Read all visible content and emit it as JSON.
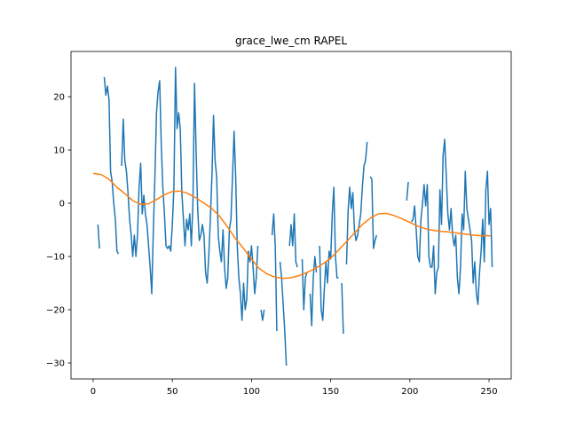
{
  "chart_data": {
    "type": "line",
    "title": "grace_lwe_cm RAPEL",
    "xlabel": "",
    "ylabel": "",
    "xlim": [
      -14,
      264
    ],
    "ylim": [
      -33,
      28.5
    ],
    "xticks": [
      0,
      50,
      100,
      150,
      200,
      250
    ],
    "yticks": [
      -30,
      -20,
      -10,
      0,
      10,
      20
    ],
    "grid": false,
    "legend": "none",
    "series": [
      {
        "color": "#1f77b4",
        "segments": [
          [
            [
              3,
              -4
            ],
            [
              4,
              -8.5
            ]
          ],
          [
            [
              7,
              23.7
            ],
            [
              8,
              20.3
            ],
            [
              9,
              22
            ],
            [
              10,
              19.5
            ],
            [
              11,
              6
            ],
            [
              12,
              4
            ],
            [
              13,
              0
            ],
            [
              14,
              -3
            ],
            [
              15,
              -9
            ],
            [
              16,
              -9.5
            ]
          ],
          [
            [
              18,
              7
            ],
            [
              19,
              15.8
            ],
            [
              20,
              8
            ],
            [
              21,
              6
            ],
            [
              22,
              2
            ],
            [
              23,
              -3
            ],
            [
              24,
              -6
            ],
            [
              25,
              -10
            ],
            [
              26,
              -6
            ],
            [
              27,
              -10
            ],
            [
              28,
              -6
            ],
            [
              29,
              3
            ],
            [
              30,
              7.5
            ],
            [
              31,
              -2
            ],
            [
              32,
              1.5
            ],
            [
              33,
              -2
            ],
            [
              34,
              -4
            ],
            [
              35,
              -8
            ],
            [
              36,
              -12
            ],
            [
              37,
              -17
            ],
            [
              38,
              -5
            ],
            [
              39,
              5
            ],
            [
              40,
              17
            ],
            [
              41,
              21
            ],
            [
              42,
              23
            ],
            [
              43,
              11
            ],
            [
              44,
              3
            ],
            [
              45,
              -2
            ],
            [
              46,
              -8
            ],
            [
              47,
              -8.5
            ],
            [
              48,
              -8
            ],
            [
              49,
              -9
            ],
            [
              50,
              -4
            ],
            [
              51,
              3
            ],
            [
              52,
              25.5
            ],
            [
              53,
              14
            ],
            [
              54,
              17
            ],
            [
              55,
              14
            ],
            [
              56,
              2
            ],
            [
              57,
              -3
            ],
            [
              58,
              -8
            ],
            [
              59,
              -3
            ],
            [
              60,
              -5
            ],
            [
              61,
              -2
            ],
            [
              62,
              -8
            ],
            [
              63,
              0
            ],
            [
              64,
              22.5
            ],
            [
              65,
              10
            ],
            [
              66,
              -1
            ],
            [
              67,
              -7
            ],
            [
              68,
              -6
            ],
            [
              69,
              -4
            ],
            [
              70,
              -6
            ],
            [
              71,
              -13
            ],
            [
              72,
              -15
            ],
            [
              73,
              -10
            ],
            [
              74,
              -3
            ],
            [
              75,
              5
            ],
            [
              76,
              16.5
            ],
            [
              77,
              8
            ],
            [
              78,
              5
            ],
            [
              79,
              -6
            ],
            [
              80,
              -9
            ],
            [
              81,
              -11
            ],
            [
              82,
              -5
            ],
            [
              83,
              -12
            ],
            [
              84,
              -16
            ],
            [
              85,
              -14
            ],
            [
              86,
              -5
            ],
            [
              87,
              -3
            ],
            [
              88,
              5
            ],
            [
              89,
              13.5
            ],
            [
              90,
              5
            ],
            [
              91,
              -8
            ],
            [
              92,
              -14
            ],
            [
              93,
              -17
            ],
            [
              94,
              -22
            ],
            [
              95,
              -15
            ],
            [
              96,
              -20
            ],
            [
              97,
              -18
            ],
            [
              98,
              -9
            ],
            [
              99,
              -11
            ],
            [
              100,
              -8
            ],
            [
              101,
              -12
            ],
            [
              102,
              -17
            ],
            [
              103,
              -14
            ],
            [
              104,
              -8
            ]
          ],
          [
            [
              106,
              -20
            ],
            [
              107,
              -22
            ],
            [
              108,
              -20
            ]
          ],
          [
            [
              113,
              -6
            ],
            [
              114,
              -2
            ],
            [
              115,
              -8
            ],
            [
              116,
              -24
            ]
          ],
          [
            [
              118,
              -11
            ],
            [
              119,
              -14
            ],
            [
              120,
              -19
            ],
            [
              121,
              -24
            ],
            [
              122,
              -30.5
            ]
          ],
          [
            [
              124,
              -8
            ],
            [
              125,
              -4
            ],
            [
              126,
              -8
            ],
            [
              127,
              -2
            ],
            [
              128,
              -11
            ],
            [
              129,
              -12
            ]
          ],
          [
            [
              132,
              -10.5
            ],
            [
              133,
              -20
            ],
            [
              134,
              -14
            ],
            [
              135,
              -13
            ]
          ],
          [
            [
              137,
              -17
            ],
            [
              138,
              -23
            ],
            [
              139,
              -14
            ],
            [
              140,
              -10
            ],
            [
              141,
              -13
            ]
          ],
          [
            [
              143,
              -8
            ],
            [
              144,
              -20
            ],
            [
              145,
              -22
            ],
            [
              146,
              -16
            ],
            [
              147,
              -11
            ],
            [
              148,
              -15
            ],
            [
              149,
              -9
            ],
            [
              150,
              -10.5
            ],
            [
              151,
              -2
            ],
            [
              152,
              3
            ],
            [
              153,
              -10
            ],
            [
              154,
              -14
            ],
            [
              155,
              -14
            ]
          ],
          [
            [
              157,
              -15
            ],
            [
              158,
              -24.5
            ]
          ],
          [
            [
              160,
              -11.5
            ],
            [
              161,
              -1.5
            ],
            [
              162,
              3
            ],
            [
              163,
              -1
            ],
            [
              164,
              2
            ],
            [
              165,
              -5
            ],
            [
              166,
              -7
            ],
            [
              167,
              -6
            ],
            [
              168,
              -4
            ],
            [
              169,
              -2
            ],
            [
              170,
              3
            ],
            [
              171,
              7
            ],
            [
              172,
              8
            ],
            [
              173,
              11.5
            ]
          ],
          [
            [
              175,
              5
            ],
            [
              176,
              4.5
            ],
            [
              177,
              -8.5
            ],
            [
              178,
              -7
            ],
            [
              179,
              -6
            ]
          ],
          [
            [
              198,
              0.5
            ],
            [
              199,
              4
            ]
          ],
          [
            [
              201,
              -3.5
            ],
            [
              202,
              -3
            ],
            [
              203,
              -0.5
            ],
            [
              204,
              -5
            ],
            [
              205,
              -10
            ],
            [
              206,
              -11
            ],
            [
              207,
              -3
            ],
            [
              208,
              0
            ],
            [
              209,
              3.5
            ],
            [
              210,
              -0.5
            ],
            [
              211,
              3.5
            ],
            [
              212,
              -10
            ],
            [
              213,
              -12
            ],
            [
              214,
              -12
            ],
            [
              215,
              -8
            ],
            [
              216,
              -17
            ],
            [
              217,
              -13
            ],
            [
              218,
              -12
            ],
            [
              219,
              2.5
            ],
            [
              220,
              -4
            ],
            [
              221,
              9
            ],
            [
              222,
              12
            ],
            [
              223,
              5
            ],
            [
              224,
              -2
            ],
            [
              225,
              -5
            ],
            [
              226,
              -1
            ],
            [
              227,
              -6
            ],
            [
              228,
              -8
            ],
            [
              229,
              -6
            ],
            [
              230,
              -14
            ],
            [
              231,
              -17
            ],
            [
              232,
              -12
            ],
            [
              233,
              -2
            ],
            [
              234,
              -5
            ],
            [
              235,
              6
            ],
            [
              236,
              -1
            ],
            [
              237,
              -3
            ],
            [
              238,
              -5
            ],
            [
              239,
              -7
            ],
            [
              240,
              -15
            ],
            [
              241,
              -11
            ],
            [
              242,
              -17
            ],
            [
              243,
              -19
            ],
            [
              244,
              -13
            ],
            [
              245,
              -9
            ],
            [
              246,
              -3
            ],
            [
              247,
              -11
            ],
            [
              248,
              2.5
            ],
            [
              249,
              6
            ],
            [
              250,
              -4
            ],
            [
              251,
              -1
            ],
            [
              252,
              -12
            ]
          ]
        ]
      },
      {
        "color": "#ff7f0e",
        "segments": [
          [
            [
              0,
              5.6
            ],
            [
              5,
              5.4
            ],
            [
              10,
              4.5
            ],
            [
              15,
              3
            ],
            [
              20,
              1.8
            ],
            [
              25,
              0.5
            ],
            [
              30,
              -0.2
            ],
            [
              35,
              -0.1
            ],
            [
              40,
              0.7
            ],
            [
              45,
              1.6
            ],
            [
              50,
              2.2
            ],
            [
              55,
              2.3
            ],
            [
              60,
              1.8
            ],
            [
              65,
              1
            ],
            [
              70,
              0
            ],
            [
              75,
              -1
            ],
            [
              80,
              -2.5
            ],
            [
              85,
              -4.5
            ],
            [
              90,
              -6.7
            ],
            [
              95,
              -8.5
            ],
            [
              100,
              -10.5
            ],
            [
              105,
              -12.3
            ],
            [
              110,
              -13.3
            ],
            [
              115,
              -13.9
            ],
            [
              120,
              -14.1
            ],
            [
              125,
              -14
            ],
            [
              130,
              -13.6
            ],
            [
              135,
              -13
            ],
            [
              140,
              -12.3
            ],
            [
              145,
              -11.4
            ],
            [
              150,
              -10.3
            ],
            [
              155,
              -8.8
            ],
            [
              160,
              -7.2
            ],
            [
              165,
              -5.6
            ],
            [
              170,
              -4
            ],
            [
              175,
              -2.8
            ],
            [
              180,
              -2
            ],
            [
              185,
              -1.9
            ],
            [
              190,
              -2.3
            ],
            [
              195,
              -2.9
            ],
            [
              200,
              -3.6
            ],
            [
              205,
              -4.3
            ],
            [
              210,
              -4.8
            ],
            [
              215,
              -5.1
            ],
            [
              220,
              -5.3
            ],
            [
              225,
              -5.4
            ],
            [
              230,
              -5.6
            ],
            [
              235,
              -5.8
            ],
            [
              240,
              -6
            ],
            [
              245,
              -6.1
            ],
            [
              250,
              -6.1
            ],
            [
              251,
              -6.2
            ]
          ]
        ]
      }
    ]
  }
}
